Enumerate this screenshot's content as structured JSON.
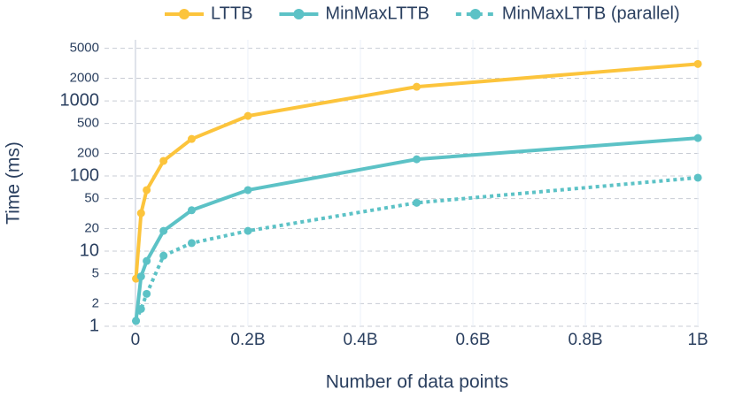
{
  "chart_data": {
    "type": "line",
    "x_label": "Number of data points",
    "y_label": "Time (ms)",
    "x": [
      1000000,
      10000000,
      20000000,
      50000000,
      100000000,
      200000000,
      500000000,
      1000000000
    ],
    "series": [
      {
        "name": "LTTB",
        "color": "#fcc43c",
        "dash": false,
        "values": [
          4.3,
          32,
          65,
          159,
          311,
          630,
          1540,
          3100
        ]
      },
      {
        "name": "MinMaxLTTB",
        "color": "#5cc2c6",
        "dash": false,
        "values": [
          1.18,
          4.6,
          7.4,
          18.6,
          35,
          65,
          167,
          320
        ]
      },
      {
        "name": "MinMaxLTTB (parallel)",
        "color": "#5cc2c6",
        "dash": true,
        "values": [
          1.18,
          1.7,
          2.7,
          8.7,
          12.8,
          18.6,
          44,
          95
        ]
      }
    ],
    "xlim": [
      -55000000,
      1003000000
    ],
    "xticks": [
      0,
      {
        "value": 200000000,
        "label": "0.2B"
      },
      {
        "value": 400000000,
        "label": "0.4B"
      },
      {
        "value": 600000000,
        "label": "0.6B"
      },
      {
        "value": 800000000,
        "label": "0.8B"
      },
      {
        "value": 1000000000,
        "label": "1B"
      }
    ],
    "ylim": [
      1,
      6500
    ],
    "log_y": true,
    "yticks": [
      1,
      2,
      5,
      10,
      20,
      50,
      100,
      200,
      500,
      1000,
      2000,
      5000
    ],
    "grid": true,
    "legend": "top"
  }
}
